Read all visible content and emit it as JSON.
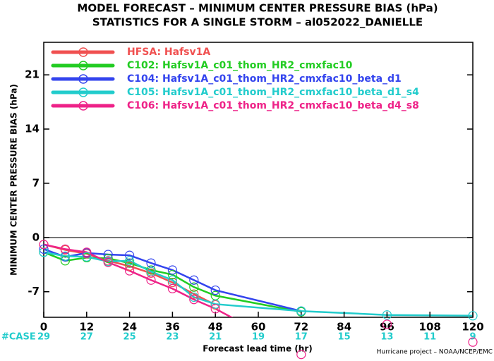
{
  "chart_data": {
    "type": "line",
    "title": "MODEL FORECAST – MINIMUM CENTER PRESSURE BIAS (hPa)",
    "subtitle": "STATISTICS FOR A SINGLE STORM – al052022_DANIELLE",
    "ylabel": "MINIMUM CENTER PRESSURE BIAS (hPa)",
    "xlabel": "Forecast lead time (hr)",
    "footer": "Hurricane project – NOAA/NCEP/EMC",
    "cases_label": "#CASE",
    "cases": [
      29,
      27,
      25,
      23,
      21,
      19,
      17,
      15,
      13,
      11,
      9
    ],
    "cases_x": [
      0,
      12,
      24,
      36,
      48,
      60,
      72,
      84,
      96,
      108,
      120
    ],
    "x": [
      0,
      6,
      12,
      18,
      24,
      30,
      36,
      42,
      48,
      72,
      96,
      120
    ],
    "xlim": [
      0,
      120
    ],
    "xticks": [
      0,
      12,
      24,
      36,
      48,
      60,
      72,
      84,
      96,
      108,
      120
    ],
    "ylim": [
      -10.3,
      25.2
    ],
    "yticks": [
      -7,
      0,
      7,
      14,
      21
    ],
    "series": [
      {
        "name": "HFSA: Hafsv1A",
        "color": "#f05050",
        "values": [
          -0.9,
          -1.6,
          -2.1,
          -3.0,
          -3.7,
          -4.6,
          -5.8,
          -7.3,
          -8.7,
          null,
          null,
          null
        ]
      },
      {
        "name": "C102: Hafsv1A_c01_thom_HR2_cmxfac10",
        "color": "#22cc22",
        "values": [
          -1.9,
          -3.0,
          -2.6,
          -2.7,
          -3.3,
          -4.2,
          -4.8,
          -6.4,
          -7.5,
          -9.6,
          null,
          null
        ]
      },
      {
        "name": "C104: Hafsv1A_c01_thom_HR2_cmxfac10_beta_d1",
        "color": "#3344ee",
        "values": [
          -1.5,
          -2.5,
          -2.0,
          -2.2,
          -2.3,
          -3.3,
          -4.2,
          -5.5,
          -6.8,
          -9.5,
          null,
          null
        ]
      },
      {
        "name": "C105: Hafsv1A_c01_thom_HR2_cmxfac10_beta_d1_s4",
        "color": "#22cccc",
        "values": [
          -1.9,
          -2.4,
          -2.5,
          -3.1,
          -3.0,
          -4.4,
          -5.5,
          -7.7,
          -8.6,
          -9.5,
          -10.0,
          -10.1
        ]
      },
      {
        "name": "C106: Hafsv1A_c01_thom_HR2_cmxfac10_beta_d4_s8",
        "color": "#ee2288",
        "values": [
          -0.9,
          -1.5,
          -1.9,
          -3.2,
          -4.3,
          -5.5,
          -6.6,
          -8.0,
          -9.2,
          -15.1,
          -11.2,
          -13.5
        ]
      }
    ]
  }
}
